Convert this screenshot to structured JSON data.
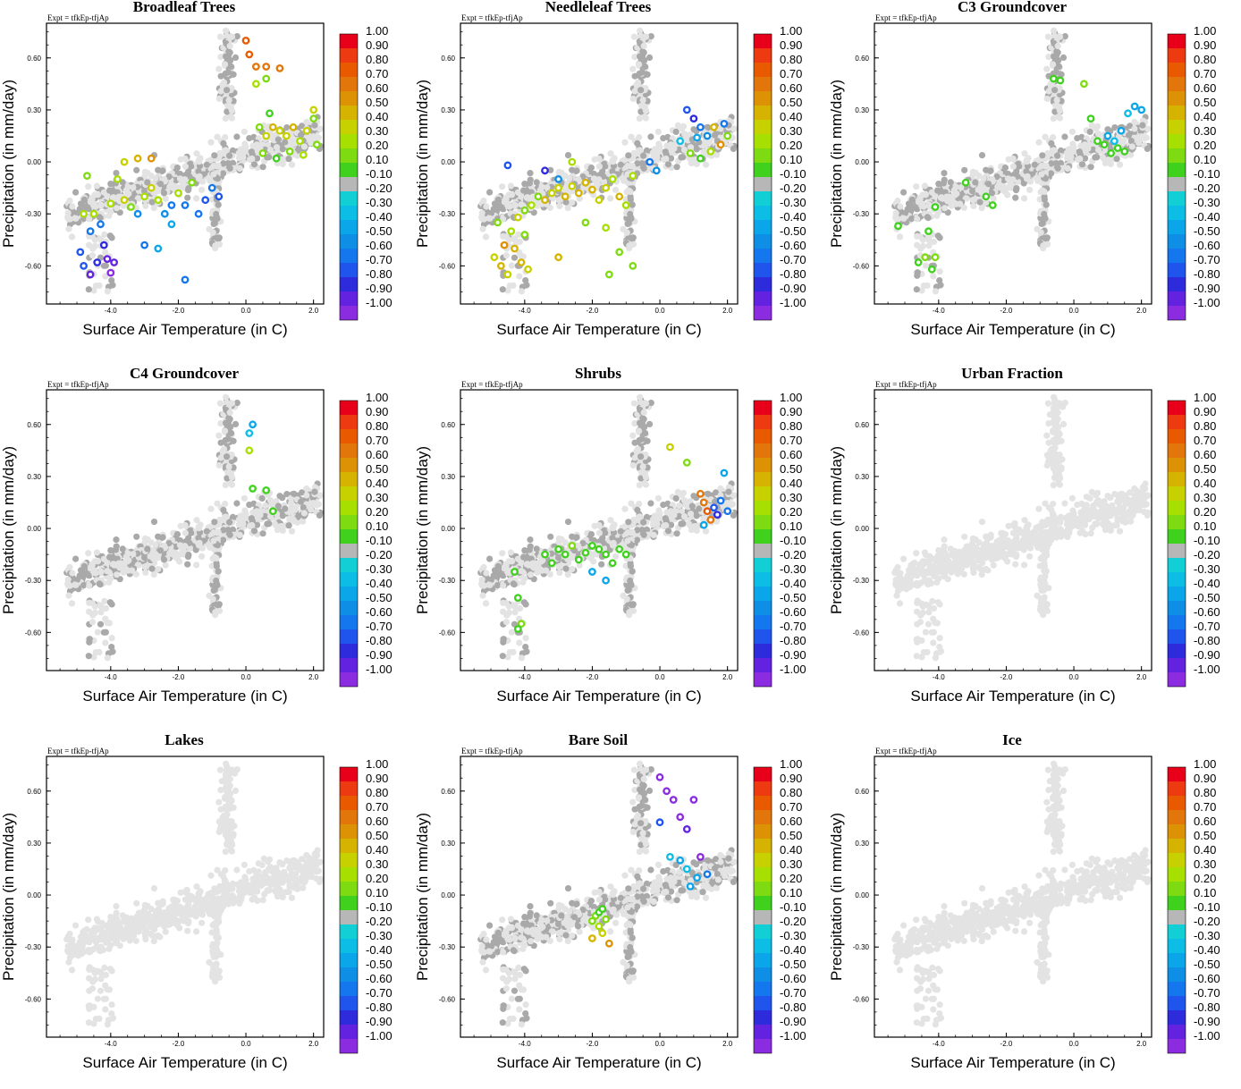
{
  "chart_data": {
    "type": "scatter",
    "layout": "3x3 small multiples",
    "expt_label": "Expt = tfkEp-tfjAp",
    "xlabel": "Surface Air Temperature (in C)",
    "ylabel": "Precipitation (in mm/day)",
    "xlim": [
      -5.9,
      2.3
    ],
    "ylim": [
      -0.82,
      0.8
    ],
    "xticks": [
      -4.0,
      -2.0,
      0.0,
      2.0
    ],
    "xtick_labels": [
      "-4.0",
      "-2.0",
      "0.0",
      "2.0"
    ],
    "yticks": [
      -0.6,
      -0.3,
      0.0,
      0.3,
      0.6
    ],
    "ytick_labels": [
      "-0.60",
      "-0.30",
      "0.00",
      "0.30",
      "0.60"
    ],
    "colorbar": {
      "labels": [
        "1.00",
        "0.90",
        "0.80",
        "0.70",
        "0.60",
        "0.50",
        "0.40",
        "0.30",
        "0.20",
        "0.10",
        "-0.10",
        "-0.20",
        "-0.30",
        "-0.40",
        "-0.50",
        "-0.60",
        "-0.70",
        "-0.80",
        "-0.90",
        "-1.00"
      ],
      "colors": [
        "#e8001a",
        "#ee3a10",
        "#e95a00",
        "#e2760a",
        "#dd9206",
        "#d6b300",
        "#c8d100",
        "#a7df00",
        "#7fdb11",
        "#3fd11d",
        "#b7b7b7",
        "#12cfd6",
        "#0cbde6",
        "#0ba6ea",
        "#0f8ee6",
        "#1577ee",
        "#1f55ec",
        "#2d2bdc",
        "#6322df",
        "#8b2ce0"
      ]
    },
    "colors": {
      "background_points": "#e3e3e3",
      "neutral_points": "#a9a9a9"
    },
    "panels": [
      {
        "title": "Broadleaf Trees",
        "points": [
          [
            -4.9,
            -0.52,
            -0.55
          ],
          [
            -4.8,
            -0.6,
            -0.6
          ],
          [
            -4.6,
            -0.65,
            -0.75
          ],
          [
            -4.4,
            -0.58,
            -0.65
          ],
          [
            -4.2,
            -0.48,
            -0.7
          ],
          [
            -4.1,
            -0.56,
            -0.75
          ],
          [
            -4.0,
            -0.64,
            -0.9
          ],
          [
            -3.9,
            -0.58,
            -0.8
          ],
          [
            -4.6,
            -0.4,
            -0.5
          ],
          [
            -4.3,
            -0.36,
            -0.45
          ],
          [
            -4.8,
            -0.3,
            0.3
          ],
          [
            -4.5,
            -0.3,
            0.35
          ],
          [
            -4.0,
            -0.24,
            0.3
          ],
          [
            -3.6,
            -0.22,
            0.4
          ],
          [
            -3.4,
            -0.26,
            0.25
          ],
          [
            -3.2,
            -0.3,
            -0.4
          ],
          [
            -3.0,
            -0.2,
            0.3
          ],
          [
            -2.8,
            -0.15,
            0.4
          ],
          [
            -2.6,
            -0.22,
            0.35
          ],
          [
            -2.4,
            -0.3,
            -0.4
          ],
          [
            -2.2,
            -0.25,
            -0.5
          ],
          [
            -2.0,
            -0.18,
            0.35
          ],
          [
            -1.8,
            -0.25,
            -0.45
          ],
          [
            -1.6,
            -0.12,
            0.2
          ],
          [
            -1.4,
            -0.3,
            -0.5
          ],
          [
            -1.2,
            -0.22,
            -0.6
          ],
          [
            -1.0,
            -0.15,
            -0.5
          ],
          [
            -0.8,
            -0.2,
            -0.6
          ],
          [
            -3.8,
            -0.1,
            0.3
          ],
          [
            -3.6,
            0.0,
            0.45
          ],
          [
            -3.2,
            0.02,
            0.55
          ],
          [
            -2.8,
            0.02,
            0.6
          ],
          [
            -4.7,
            -0.08,
            0.2
          ],
          [
            -3.0,
            -0.48,
            -0.5
          ],
          [
            -2.6,
            -0.5,
            -0.3
          ],
          [
            -2.2,
            -0.36,
            -0.3
          ],
          [
            -1.8,
            -0.68,
            -0.45
          ],
          [
            0.0,
            0.7,
            0.8
          ],
          [
            0.1,
            0.62,
            0.8
          ],
          [
            0.3,
            0.55,
            0.7
          ],
          [
            0.6,
            0.55,
            0.75
          ],
          [
            1.0,
            0.54,
            0.7
          ],
          [
            0.3,
            0.45,
            0.3
          ],
          [
            0.6,
            0.48,
            0.2
          ],
          [
            0.4,
            0.2,
            0.2
          ],
          [
            0.6,
            0.15,
            0.4
          ],
          [
            0.8,
            0.2,
            0.5
          ],
          [
            1.0,
            0.18,
            0.45
          ],
          [
            1.2,
            0.15,
            0.4
          ],
          [
            1.4,
            0.2,
            0.5
          ],
          [
            1.6,
            0.12,
            0.35
          ],
          [
            1.8,
            0.18,
            0.45
          ],
          [
            2.0,
            0.25,
            0.2
          ],
          [
            2.1,
            0.1,
            0.2
          ],
          [
            0.5,
            0.05,
            0.2
          ],
          [
            0.9,
            0.02,
            0.1
          ],
          [
            1.3,
            0.06,
            0.2
          ],
          [
            1.7,
            0.04,
            0.3
          ],
          [
            2.0,
            0.3,
            0.4
          ],
          [
            0.7,
            0.28,
            0.15
          ]
        ]
      },
      {
        "title": "Needleleaf Trees",
        "points": [
          [
            -4.9,
            -0.55,
            0.45
          ],
          [
            -4.7,
            -0.6,
            0.5
          ],
          [
            -4.5,
            -0.65,
            0.45
          ],
          [
            -4.3,
            -0.5,
            0.55
          ],
          [
            -4.1,
            -0.58,
            0.5
          ],
          [
            -3.9,
            -0.62,
            0.4
          ],
          [
            -4.6,
            -0.48,
            0.6
          ],
          [
            -4.4,
            -0.4,
            0.3
          ],
          [
            -4.2,
            -0.32,
            0.4
          ],
          [
            -4.0,
            -0.28,
            0.2
          ],
          [
            -3.8,
            -0.25,
            0.35
          ],
          [
            -3.6,
            -0.2,
            0.25
          ],
          [
            -3.4,
            -0.22,
            0.5
          ],
          [
            -3.2,
            -0.18,
            0.45
          ],
          [
            -3.0,
            -0.15,
            0.4
          ],
          [
            -2.8,
            -0.2,
            0.5
          ],
          [
            -2.6,
            -0.14,
            0.45
          ],
          [
            -2.4,
            -0.18,
            0.5
          ],
          [
            -2.2,
            -0.12,
            0.55
          ],
          [
            -2.0,
            -0.16,
            0.5
          ],
          [
            -1.8,
            -0.22,
            0.45
          ],
          [
            -1.6,
            -0.15,
            0.4
          ],
          [
            -1.4,
            -0.1,
            0.3
          ],
          [
            -1.2,
            -0.2,
            0.5
          ],
          [
            -1.0,
            -0.25,
            0.35
          ],
          [
            -0.8,
            -0.08,
            0.3
          ],
          [
            -4.8,
            -0.35,
            0.2
          ],
          [
            -4.0,
            -0.42,
            0.2
          ],
          [
            -3.4,
            -0.05,
            -0.7
          ],
          [
            -3.0,
            -0.1,
            -0.4
          ],
          [
            -2.6,
            0.0,
            0.3
          ],
          [
            -2.2,
            -0.35,
            0.2
          ],
          [
            -1.6,
            -0.38,
            0.3
          ],
          [
            -1.2,
            -0.52,
            0.25
          ],
          [
            -0.8,
            -0.6,
            0.2
          ],
          [
            -3.0,
            -0.55,
            0.5
          ],
          [
            -1.5,
            -0.65,
            0.2
          ],
          [
            -4.5,
            -0.02,
            -0.6
          ],
          [
            0.8,
            0.3,
            -0.6
          ],
          [
            1.0,
            0.25,
            -0.7
          ],
          [
            1.2,
            0.2,
            -0.5
          ],
          [
            1.4,
            0.15,
            -0.4
          ],
          [
            1.6,
            0.2,
            0.55
          ],
          [
            1.8,
            0.1,
            0.6
          ],
          [
            2.0,
            0.15,
            0.2
          ],
          [
            0.9,
            0.05,
            0.2
          ],
          [
            1.2,
            0.02,
            0.15
          ],
          [
            1.5,
            0.06,
            0.3
          ],
          [
            0.6,
            0.12,
            -0.2
          ],
          [
            1.1,
            0.14,
            -0.3
          ],
          [
            1.9,
            0.22,
            -0.5
          ],
          [
            -0.3,
            0.0,
            -0.5
          ],
          [
            -0.1,
            -0.05,
            -0.4
          ]
        ]
      },
      {
        "title": "C3 Groundcover",
        "points": [
          [
            -5.2,
            -0.37,
            0.1
          ],
          [
            -4.6,
            -0.58,
            0.15
          ],
          [
            -4.4,
            -0.55,
            0.2
          ],
          [
            -4.2,
            -0.62,
            0.1
          ],
          [
            -4.1,
            -0.55,
            0.2
          ],
          [
            -4.3,
            -0.4,
            0.15
          ],
          [
            -4.1,
            -0.26,
            0.15
          ],
          [
            -3.2,
            -0.12,
            0.15
          ],
          [
            -2.6,
            -0.2,
            0.1
          ],
          [
            -2.4,
            -0.25,
            0.1
          ],
          [
            -0.6,
            0.48,
            0.1
          ],
          [
            -0.4,
            0.47,
            0.15
          ],
          [
            0.3,
            0.45,
            0.2
          ],
          [
            0.7,
            0.12,
            0.1
          ],
          [
            0.9,
            0.1,
            0.15
          ],
          [
            1.0,
            0.15,
            -0.3
          ],
          [
            1.2,
            0.12,
            -0.2
          ],
          [
            1.4,
            0.18,
            -0.3
          ],
          [
            1.6,
            0.28,
            -0.2
          ],
          [
            1.8,
            0.32,
            -0.25
          ],
          [
            2.0,
            0.3,
            -0.3
          ],
          [
            1.3,
            0.08,
            0.15
          ],
          [
            1.5,
            0.06,
            0.1
          ],
          [
            1.1,
            0.05,
            0.1
          ],
          [
            0.5,
            0.25,
            0.1
          ]
        ]
      },
      {
        "title": "C4 Groundcover",
        "points": [
          [
            0.1,
            0.45,
            0.35
          ],
          [
            0.2,
            0.6,
            -0.3
          ],
          [
            0.1,
            0.55,
            -0.2
          ],
          [
            0.2,
            0.23,
            0.15
          ],
          [
            0.6,
            0.22,
            0.15
          ],
          [
            0.8,
            0.1,
            0.15
          ]
        ]
      },
      {
        "title": "Shrubs",
        "points": [
          [
            -4.3,
            -0.25,
            0.15
          ],
          [
            -4.2,
            -0.4,
            0.15
          ],
          [
            -4.1,
            -0.55,
            0.2
          ],
          [
            -4.2,
            -0.58,
            0.1
          ],
          [
            -3.4,
            -0.15,
            0.15
          ],
          [
            -3.2,
            -0.2,
            0.15
          ],
          [
            -3.0,
            -0.12,
            0.1
          ],
          [
            -2.8,
            -0.15,
            0.15
          ],
          [
            -2.6,
            -0.1,
            0.2
          ],
          [
            -2.4,
            -0.18,
            0.15
          ],
          [
            -2.2,
            -0.14,
            0.15
          ],
          [
            -2.0,
            -0.1,
            0.1
          ],
          [
            -1.8,
            -0.12,
            0.15
          ],
          [
            -1.6,
            -0.15,
            0.15
          ],
          [
            -1.4,
            -0.2,
            0.15
          ],
          [
            -1.2,
            -0.12,
            0.1
          ],
          [
            -1.0,
            -0.15,
            0.1
          ],
          [
            -2.0,
            -0.25,
            -0.3
          ],
          [
            -1.6,
            -0.3,
            -0.25
          ],
          [
            0.3,
            0.47,
            0.4
          ],
          [
            0.8,
            0.38,
            0.2
          ],
          [
            1.2,
            0.2,
            0.7
          ],
          [
            1.3,
            0.15,
            0.75
          ],
          [
            1.4,
            0.1,
            0.8
          ],
          [
            1.5,
            0.05,
            0.7
          ],
          [
            1.6,
            0.12,
            -0.6
          ],
          [
            1.7,
            0.08,
            -0.7
          ],
          [
            1.8,
            0.16,
            -0.5
          ],
          [
            1.9,
            0.32,
            -0.3
          ],
          [
            2.0,
            0.1,
            -0.5
          ],
          [
            1.3,
            0.02,
            -0.3
          ]
        ]
      },
      {
        "title": "Urban Fraction",
        "points": []
      },
      {
        "title": "Lakes",
        "points": []
      },
      {
        "title": "Bare Soil",
        "points": [
          [
            -2.0,
            -0.15,
            0.2
          ],
          [
            -1.9,
            -0.12,
            0.2
          ],
          [
            -1.8,
            -0.1,
            0.15
          ],
          [
            -1.7,
            -0.08,
            0.15
          ],
          [
            -1.8,
            -0.18,
            0.3
          ],
          [
            -1.6,
            -0.14,
            0.25
          ],
          [
            -1.7,
            -0.22,
            0.4
          ],
          [
            -2.0,
            -0.25,
            0.55
          ],
          [
            -1.5,
            -0.28,
            0.6
          ],
          [
            0.0,
            0.68,
            -0.9
          ],
          [
            0.2,
            0.6,
            -0.9
          ],
          [
            0.4,
            0.55,
            -0.95
          ],
          [
            0.6,
            0.45,
            -0.9
          ],
          [
            0.8,
            0.38,
            -0.8
          ],
          [
            1.0,
            0.55,
            -0.9
          ],
          [
            1.2,
            0.22,
            -0.9
          ],
          [
            0.3,
            0.22,
            -0.2
          ],
          [
            0.6,
            0.2,
            -0.3
          ],
          [
            0.8,
            0.15,
            -0.2
          ],
          [
            1.1,
            0.1,
            -0.3
          ],
          [
            1.4,
            0.12,
            -0.5
          ],
          [
            0.0,
            0.42,
            -0.6
          ],
          [
            0.9,
            0.05,
            -0.3
          ]
        ]
      },
      {
        "title": "Ice",
        "points": []
      }
    ]
  }
}
